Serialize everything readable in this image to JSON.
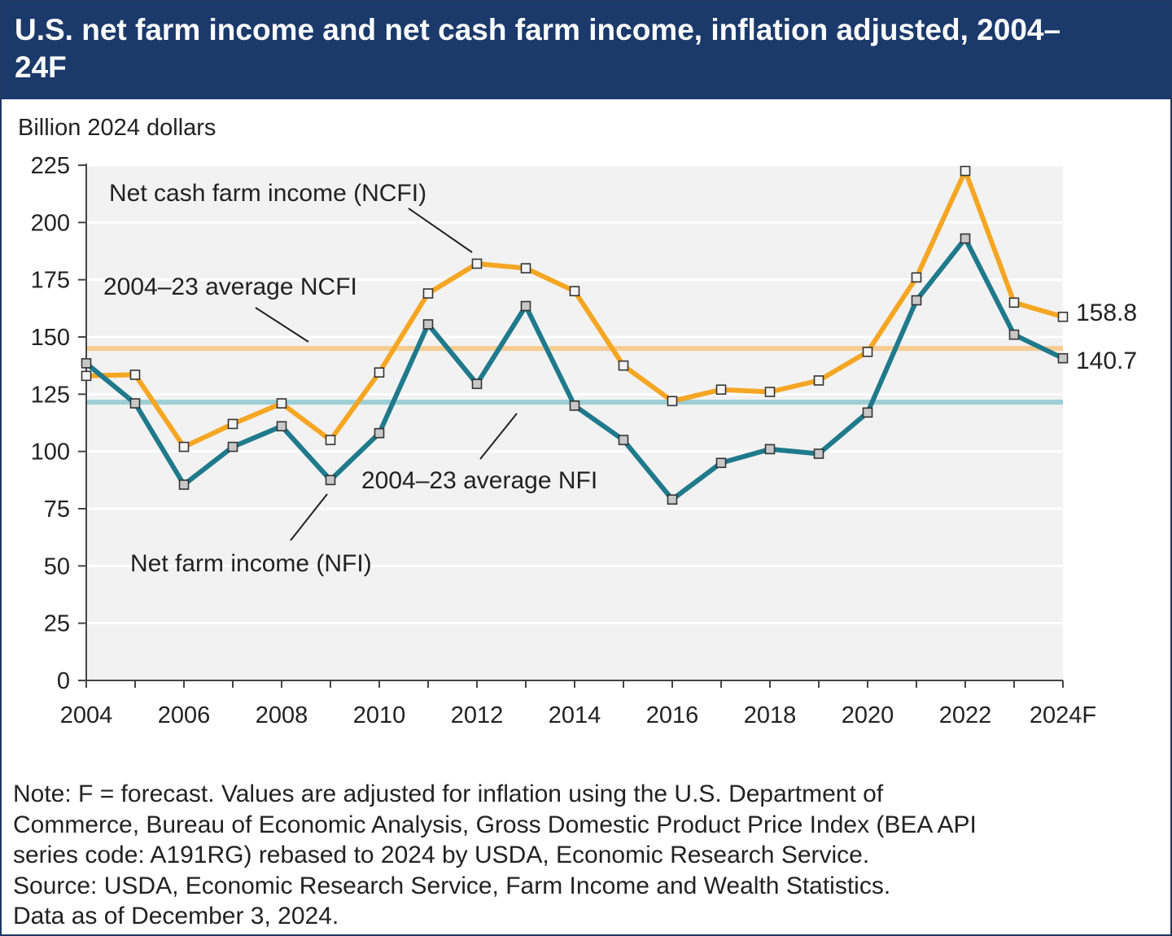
{
  "header": {
    "title": "U.S. net farm income and net cash farm income, inflation adjusted, 2004–24F"
  },
  "chart_data": {
    "type": "line",
    "title": "U.S. net farm income and net cash farm income, inflation adjusted, 2004–24F",
    "ylabel": "Billion 2024 dollars",
    "xlabel": "",
    "ylim": [
      0,
      225
    ],
    "yticks": [
      0,
      25,
      50,
      75,
      100,
      125,
      150,
      175,
      200,
      225
    ],
    "x": [
      2004,
      2005,
      2006,
      2007,
      2008,
      2009,
      2010,
      2011,
      2012,
      2013,
      2014,
      2015,
      2016,
      2017,
      2018,
      2019,
      2020,
      2021,
      2022,
      2023,
      2024
    ],
    "x_tick_labels": [
      "2004",
      "2006",
      "2008",
      "2010",
      "2012",
      "2014",
      "2016",
      "2018",
      "2020",
      "2022",
      "2024F"
    ],
    "x_tick_years": [
      2004,
      2006,
      2008,
      2010,
      2012,
      2014,
      2016,
      2018,
      2020,
      2022,
      2024
    ],
    "series": [
      {
        "name": "Net cash farm income (NCFI)",
        "color": "#f5a623",
        "values": [
          133,
          133.5,
          102,
          112,
          121,
          105,
          134.5,
          169,
          182,
          180,
          170,
          137.5,
          122,
          127,
          126,
          131,
          143.5,
          176,
          222.5,
          165,
          158.8
        ]
      },
      {
        "name": "Net farm income (NFI)",
        "color": "#1f7a8c",
        "values": [
          138.5,
          121,
          85.5,
          102,
          111,
          87.5,
          108,
          155.5,
          129.5,
          163.5,
          120,
          105,
          79,
          95,
          101,
          99,
          117,
          166,
          193,
          151,
          140.7
        ]
      }
    ],
    "reference_lines": [
      {
        "name": "2004–23 average NCFI",
        "value": 145,
        "color": "#f8cc92"
      },
      {
        "name": "2004–23 average NFI",
        "value": 121.5,
        "color": "#9ccfd6"
      }
    ],
    "annotations": {
      "ncfi_label": "Net cash farm income (NCFI)",
      "nfi_label": "Net farm income (NFI)",
      "avg_ncfi_label": "2004–23 average NCFI",
      "avg_nfi_label": "2004–23 average NFI",
      "ncfi_end_label": "158.8",
      "nfi_end_label": "140.7"
    },
    "grid": true,
    "background_color": "#f2f2f2"
  },
  "notes": {
    "lines": [
      "Note: F = forecast. Values are adjusted for inflation using the U.S. Department of",
      "Commerce, Bureau of Economic Analysis, Gross Domestic Product Price Index (BEA API",
      "series code: A191RG) rebased to 2024 by USDA, Economic Research Service.",
      "Source: USDA, Economic Research Service, Farm Income and Wealth Statistics.",
      "Data as of December 3, 2024."
    ]
  }
}
